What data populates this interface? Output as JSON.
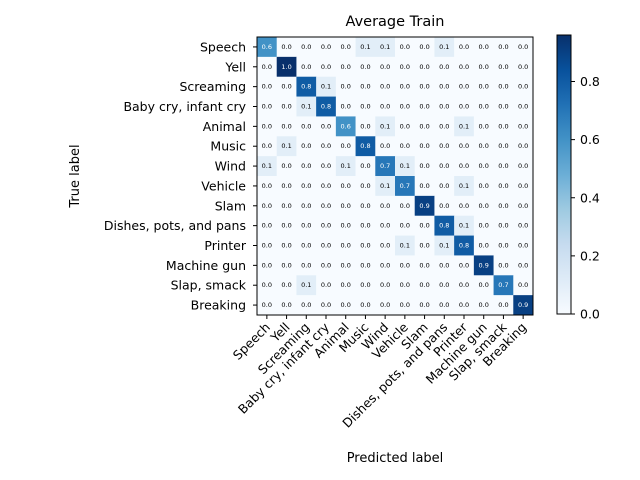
{
  "chart_data": {
    "type": "heatmap",
    "title": "Average Train",
    "xlabel": "Predicted label",
    "ylabel": "True label",
    "labels": [
      "Speech",
      "Yell",
      "Screaming",
      "Baby cry, infant cry",
      "Animal",
      "Music",
      "Wind",
      "Vehicle",
      "Slam",
      "Dishes, pots, and pans",
      "Printer",
      "Machine gun",
      "Slap, smack",
      "Breaking"
    ],
    "matrix": [
      [
        0.6,
        0.0,
        0.0,
        0.0,
        0.0,
        0.1,
        0.1,
        0.0,
        0.0,
        0.1,
        0.0,
        0.0,
        0.0,
        0.0
      ],
      [
        0.0,
        1.0,
        0.0,
        0.0,
        0.0,
        0.0,
        0.0,
        0.0,
        0.0,
        0.0,
        0.0,
        0.0,
        0.0,
        0.0
      ],
      [
        0.0,
        0.0,
        0.8,
        0.1,
        0.0,
        0.0,
        0.0,
        0.0,
        0.0,
        0.0,
        0.0,
        0.0,
        0.0,
        0.0
      ],
      [
        0.0,
        0.0,
        0.1,
        0.8,
        0.0,
        0.0,
        0.0,
        0.0,
        0.0,
        0.0,
        0.0,
        0.0,
        0.0,
        0.0
      ],
      [
        0.0,
        0.0,
        0.0,
        0.0,
        0.6,
        0.0,
        0.1,
        0.0,
        0.0,
        0.0,
        0.1,
        0.0,
        0.0,
        0.0
      ],
      [
        0.0,
        0.1,
        0.0,
        0.0,
        0.0,
        0.8,
        0.0,
        0.0,
        0.0,
        0.0,
        0.0,
        0.0,
        0.0,
        0.0
      ],
      [
        0.1,
        0.0,
        0.0,
        0.0,
        0.1,
        0.0,
        0.7,
        0.1,
        0.0,
        0.0,
        0.0,
        0.0,
        0.0,
        0.0
      ],
      [
        0.0,
        0.0,
        0.0,
        0.0,
        0.0,
        0.0,
        0.1,
        0.7,
        0.0,
        0.0,
        0.1,
        0.0,
        0.0,
        0.0
      ],
      [
        0.0,
        0.0,
        0.0,
        0.0,
        0.0,
        0.0,
        0.0,
        0.0,
        0.9,
        0.0,
        0.0,
        0.0,
        0.0,
        0.0
      ],
      [
        0.0,
        0.0,
        0.0,
        0.0,
        0.0,
        0.0,
        0.0,
        0.0,
        0.0,
        0.8,
        0.1,
        0.0,
        0.0,
        0.0
      ],
      [
        0.0,
        0.0,
        0.0,
        0.0,
        0.0,
        0.0,
        0.0,
        0.1,
        0.0,
        0.1,
        0.8,
        0.0,
        0.0,
        0.0
      ],
      [
        0.0,
        0.0,
        0.0,
        0.0,
        0.0,
        0.0,
        0.0,
        0.0,
        0.0,
        0.0,
        0.0,
        0.9,
        0.0,
        0.0
      ],
      [
        0.0,
        0.0,
        0.1,
        0.0,
        0.0,
        0.0,
        0.0,
        0.0,
        0.0,
        0.0,
        0.0,
        0.0,
        0.7,
        0.0
      ],
      [
        0.0,
        0.0,
        0.0,
        0.0,
        0.0,
        0.0,
        0.0,
        0.0,
        0.0,
        0.0,
        0.0,
        0.0,
        0.0,
        0.9
      ]
    ],
    "colorbar": {
      "colormap": "Blues",
      "range": [
        0.0,
        0.96
      ],
      "ticks": [
        0.0,
        0.2,
        0.4,
        0.6,
        0.8
      ],
      "tick_labels": [
        "0.0",
        "0.2",
        "0.4",
        "0.6",
        "0.8"
      ]
    },
    "colors": {
      "low": "#f7fbff",
      "high": "#08306b",
      "text_dark": "#000000",
      "text_light": "#ffffff"
    }
  }
}
